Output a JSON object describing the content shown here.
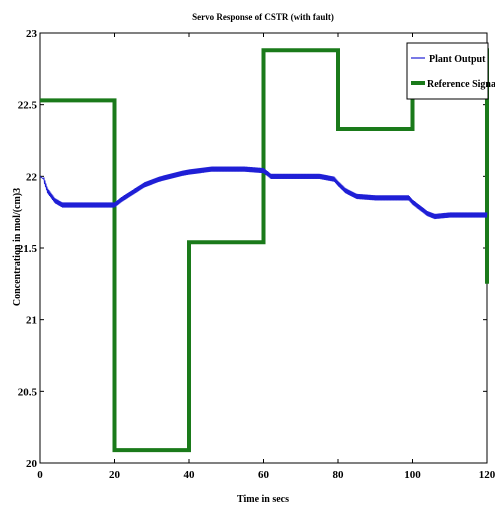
{
  "chart_data": {
    "type": "line",
    "title": "Servo Response of CSTR (with fault)",
    "xlabel": "Time in secs",
    "ylabel": "Concentration in mol/(cm)3",
    "xlim": [
      0,
      120
    ],
    "ylim": [
      20,
      23
    ],
    "xticks": [
      "0",
      "20",
      "40",
      "60",
      "80",
      "100",
      "120"
    ],
    "yticks": [
      "20",
      "20.5",
      "21",
      "21.5",
      "22",
      "22.5",
      "23"
    ],
    "grid": false,
    "legend_position": "top-right",
    "series": [
      {
        "name": "Plant Output",
        "color": "#1f1fd6",
        "style": "thin-oscillating",
        "x": [
          0,
          1,
          2,
          4,
          6,
          10,
          15,
          19,
          20,
          22,
          25,
          28,
          30,
          32,
          35,
          38,
          40,
          43,
          46,
          50,
          55,
          60,
          61,
          62,
          65,
          70,
          75,
          79,
          80,
          82,
          85,
          90,
          95,
          99,
          100,
          102,
          104,
          106,
          110,
          115,
          120
        ],
        "y": [
          22.0,
          21.98,
          21.9,
          21.83,
          21.8,
          21.8,
          21.8,
          21.8,
          21.8,
          21.84,
          21.89,
          21.94,
          21.96,
          21.98,
          22.0,
          22.02,
          22.03,
          22.04,
          22.05,
          22.05,
          22.05,
          22.04,
          22.02,
          22.0,
          22.0,
          22.0,
          22.0,
          21.98,
          21.95,
          21.9,
          21.86,
          21.85,
          21.85,
          21.85,
          21.82,
          21.78,
          21.74,
          21.72,
          21.73,
          21.73,
          21.73
        ]
      },
      {
        "name": "Reference Signal",
        "color": "#1a7a1a",
        "style": "thick-step",
        "x": [
          0,
          20,
          20,
          40,
          40,
          60,
          60,
          80,
          80,
          100,
          100,
          120,
          120
        ],
        "y": [
          22.53,
          22.53,
          20.09,
          20.09,
          21.54,
          21.54,
          22.88,
          22.88,
          22.33,
          22.33,
          22.88,
          22.88,
          21.25
        ]
      }
    ]
  }
}
